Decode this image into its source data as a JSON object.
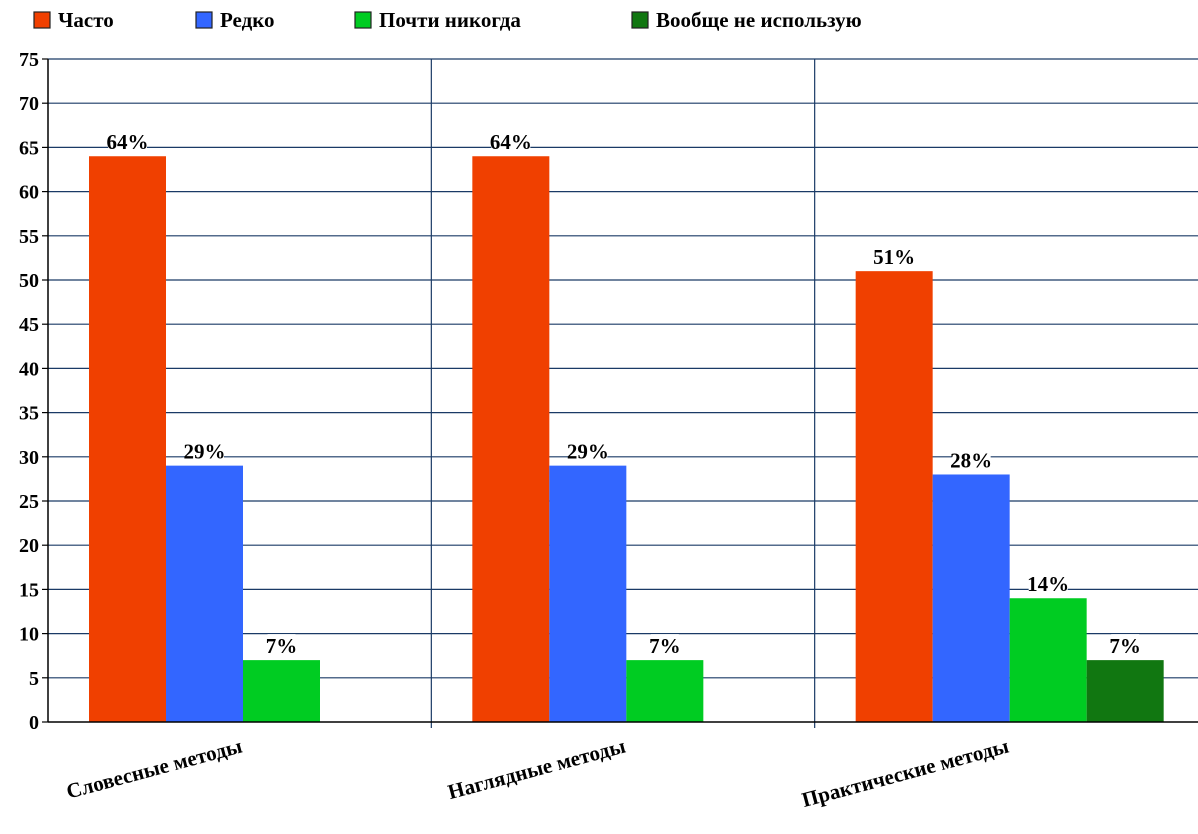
{
  "chart_data": {
    "type": "bar",
    "categories": [
      "Словесные методы",
      "Наглядные методы",
      "Практические методы"
    ],
    "series": [
      {
        "name": "Часто",
        "color": "#f04000",
        "values": [
          64,
          64,
          51
        ],
        "labels": [
          "64%",
          "64%",
          "51%"
        ]
      },
      {
        "name": "Редко",
        "color": "#3366ff",
        "values": [
          29,
          29,
          28
        ],
        "labels": [
          "29%",
          "29%",
          "28%"
        ]
      },
      {
        "name": "Почти никогда",
        "color": "#00cc22",
        "values": [
          7,
          7,
          14
        ],
        "labels": [
          "7%",
          "7%",
          "14%"
        ]
      },
      {
        "name": "Вообще не использую",
        "color": "#117711",
        "values": [
          null,
          null,
          7
        ],
        "labels": [
          null,
          null,
          "7%"
        ]
      }
    ],
    "title": "",
    "xlabel": "",
    "ylabel": "",
    "ylim": [
      0,
      75
    ],
    "yticks": [
      0,
      5,
      10,
      15,
      20,
      25,
      30,
      35,
      40,
      45,
      50,
      55,
      60,
      65,
      70,
      75
    ],
    "grid": true,
    "legend_position": "top-left",
    "grid_color": "#1a3a66"
  }
}
